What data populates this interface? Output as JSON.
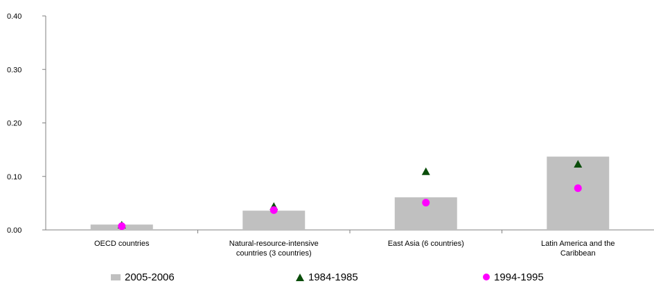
{
  "chart_data": {
    "type": "bar",
    "categories": [
      [
        "OECD countries"
      ],
      [
        "Natural-resource-intensive",
        "countries (3 countries)"
      ],
      [
        "East Asia (6 countries)"
      ],
      [
        "Latin America and the",
        "Caribbean"
      ]
    ],
    "ylim": [
      0,
      0.4
    ],
    "yticks": [
      "0.00",
      "0.10",
      "0.20",
      "0.30",
      "0.40"
    ],
    "ytick_values": [
      0,
      0.1,
      0.2,
      0.3,
      0.4
    ],
    "series": [
      {
        "name": "2005-2006",
        "mark": "bar",
        "color": "#c0c0c0",
        "values": [
          0.01,
          0.036,
          0.061,
          0.137
        ]
      },
      {
        "name": "1984-1985",
        "mark": "triangle",
        "color": "#0a4d0a",
        "values": [
          0.009,
          0.044,
          0.109,
          0.123
        ]
      },
      {
        "name": "1994-1995",
        "mark": "circle",
        "color": "#ff00ff",
        "values": [
          0.007,
          0.037,
          0.051,
          0.078
        ]
      }
    ]
  }
}
